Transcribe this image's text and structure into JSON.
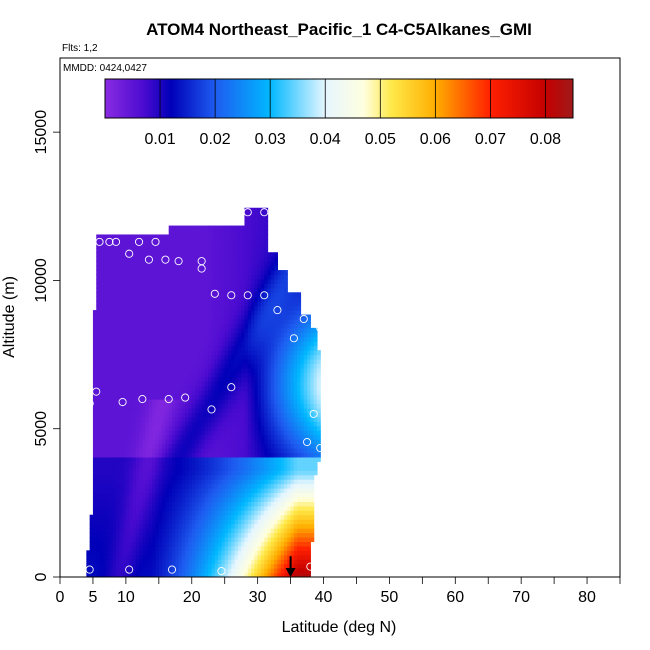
{
  "chart_data": {
    "type": "heatmap",
    "title": "ATOM4 Northeast_Pacific_1 C4-C5Alkanes_GMI",
    "flights_note": "Flts: 1,2",
    "date_note": "MMDD: 0424,0427",
    "xlabel": "Latitude (deg N)",
    "ylabel": "Altitude (m)",
    "xlim": [
      0,
      85
    ],
    "ylim": [
      0,
      17500
    ],
    "x_ticks": [
      0,
      5,
      10,
      20,
      30,
      40,
      50,
      60,
      70,
      80
    ],
    "x_tick_labels": [
      "0",
      "5",
      "10",
      "20",
      "30",
      "40",
      "50",
      "60",
      "70",
      "80"
    ],
    "y_ticks": [
      0,
      5000,
      10000,
      15000
    ],
    "y_tick_labels": [
      "0",
      "5000",
      "10000",
      "15000"
    ],
    "colorbar": {
      "range": [
        0.0,
        0.085
      ],
      "tick_values": [
        0.01,
        0.02,
        0.03,
        0.04,
        0.05,
        0.06,
        0.07,
        0.08
      ],
      "tick_labels": [
        "0.01",
        "0.02",
        "0.03",
        "0.04",
        "0.05",
        "0.06",
        "0.07",
        "0.08"
      ],
      "placement": "top-inside",
      "stops": [
        {
          "v": 0.0,
          "c": "#8a2be2"
        },
        {
          "v": 0.007,
          "c": "#4b0bd0"
        },
        {
          "v": 0.012,
          "c": "#0000b8"
        },
        {
          "v": 0.02,
          "c": "#1e5cf0"
        },
        {
          "v": 0.03,
          "c": "#00b8ff"
        },
        {
          "v": 0.04,
          "c": "#e6f6ff"
        },
        {
          "v": 0.047,
          "c": "#ffffe0"
        },
        {
          "v": 0.052,
          "c": "#ffe94a"
        },
        {
          "v": 0.06,
          "c": "#ffae00"
        },
        {
          "v": 0.07,
          "c": "#ff2000"
        },
        {
          "v": 0.08,
          "c": "#c40000"
        },
        {
          "v": 0.085,
          "c": "#a01a1a"
        }
      ]
    },
    "domain_outline": [
      [
        4,
        0
      ],
      [
        4,
        600
      ],
      [
        4.5,
        1200
      ],
      [
        5,
        3000
      ],
      [
        5,
        6500
      ],
      [
        5.5,
        11500
      ],
      [
        16.5,
        11500
      ],
      [
        16.5,
        11900
      ],
      [
        28,
        11900
      ],
      [
        28,
        12500
      ],
      [
        31.5,
        12500
      ],
      [
        31.5,
        11000
      ],
      [
        33,
        11000
      ],
      [
        33,
        10300
      ],
      [
        34.5,
        10300
      ],
      [
        34.5,
        9600
      ],
      [
        36.5,
        9600
      ],
      [
        36.5,
        8900
      ],
      [
        38,
        8900
      ],
      [
        38,
        8400
      ],
      [
        39,
        8400
      ],
      [
        39.5,
        7000
      ],
      [
        39.5,
        4000
      ],
      [
        38.5,
        3300
      ],
      [
        38.5,
        1500
      ],
      [
        38,
        1000
      ],
      [
        38,
        0
      ]
    ],
    "field_model": {
      "description": "concentration decreasing with altitude and increasing toward higher latitude",
      "surface_high_lat": 0.075,
      "mid_band_alt": 4500,
      "upper_value": 0.006
    },
    "observation_points": [
      {
        "x": 4.5,
        "y": 250
      },
      {
        "x": 4.5,
        "y": 5850
      },
      {
        "x": 5.5,
        "y": 6250
      },
      {
        "x": 6,
        "y": 11300
      },
      {
        "x": 7.5,
        "y": 11300
      },
      {
        "x": 8.5,
        "y": 11300
      },
      {
        "x": 9.5,
        "y": 5900
      },
      {
        "x": 10.5,
        "y": 10900
      },
      {
        "x": 10.5,
        "y": 250
      },
      {
        "x": 12,
        "y": 11300
      },
      {
        "x": 12.5,
        "y": 6000
      },
      {
        "x": 13.5,
        "y": 10700
      },
      {
        "x": 14.5,
        "y": 11300
      },
      {
        "x": 16,
        "y": 10700
      },
      {
        "x": 16.5,
        "y": 6000
      },
      {
        "x": 17,
        "y": 250
      },
      {
        "x": 18,
        "y": 10650
      },
      {
        "x": 19,
        "y": 6050
      },
      {
        "x": 21.5,
        "y": 10400
      },
      {
        "x": 21.5,
        "y": 10650
      },
      {
        "x": 23,
        "y": 5650
      },
      {
        "x": 23.5,
        "y": 9550
      },
      {
        "x": 24.5,
        "y": 200
      },
      {
        "x": 26,
        "y": 9500
      },
      {
        "x": 26,
        "y": 6400
      },
      {
        "x": 28.5,
        "y": 12300
      },
      {
        "x": 28.5,
        "y": 9500
      },
      {
        "x": 31,
        "y": 12300
      },
      {
        "x": 31,
        "y": 9500
      },
      {
        "x": 33,
        "y": 9000
      },
      {
        "x": 35.5,
        "y": 8050
      },
      {
        "x": 37,
        "y": 8700
      },
      {
        "x": 37.5,
        "y": 4550
      },
      {
        "x": 38.5,
        "y": 5500
      },
      {
        "x": 39.5,
        "y": 8400
      },
      {
        "x": 39.5,
        "y": 4350
      },
      {
        "x": 38,
        "y": 350
      }
    ],
    "arrow_marker": {
      "x": 35,
      "y_top": 700,
      "y_bottom": 0
    }
  }
}
